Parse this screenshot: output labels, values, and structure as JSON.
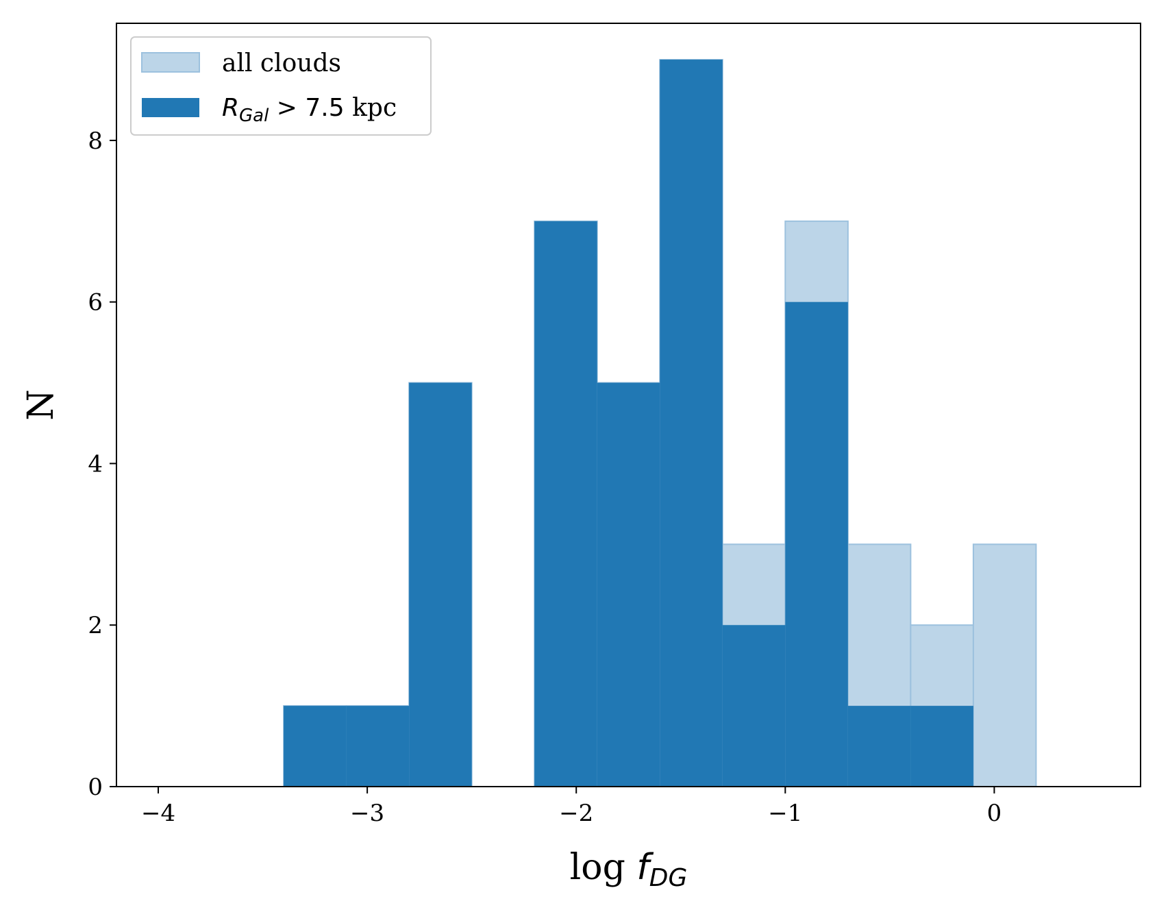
{
  "chart_data": {
    "type": "bar",
    "subtype": "histogram",
    "title": "",
    "xlabel": {
      "base": "log ",
      "symbol": "f",
      "subscript": "DG"
    },
    "ylabel": "N",
    "xlim": [
      -4.2,
      0.7
    ],
    "ylim": [
      0,
      9.45
    ],
    "xticks": [
      -4,
      -3,
      -2,
      -1,
      0
    ],
    "xtick_labels": [
      "−4",
      "−3",
      "−2",
      "−1",
      "0"
    ],
    "yticks": [
      0,
      2,
      4,
      6,
      8
    ],
    "ytick_labels": [
      "0",
      "2",
      "4",
      "6",
      "8"
    ],
    "grid": false,
    "legend_position": "top-left",
    "bin_edges": [
      -4.0,
      -3.7,
      -3.4,
      -3.1,
      -2.8,
      -2.5,
      -2.2,
      -1.9,
      -1.6,
      -1.3,
      -1.0,
      -0.7,
      -0.4,
      -0.1,
      0.2,
      0.5
    ],
    "series": [
      {
        "name": "all clouds",
        "color": "#bcd5e8",
        "edge_color": "#9cc1de",
        "counts": [
          0,
          0,
          1,
          1,
          5,
          0,
          7,
          5,
          9,
          3,
          7,
          3,
          2,
          3,
          0
        ]
      },
      {
        "name_math": {
          "symbol": "R",
          "subscript": "Gal",
          "relation": " > 7.5",
          "unit": " kpc"
        },
        "color": "#2178b4",
        "counts": [
          0,
          0,
          1,
          1,
          5,
          0,
          7,
          5,
          9,
          2,
          6,
          1,
          1,
          0,
          0
        ]
      }
    ]
  }
}
